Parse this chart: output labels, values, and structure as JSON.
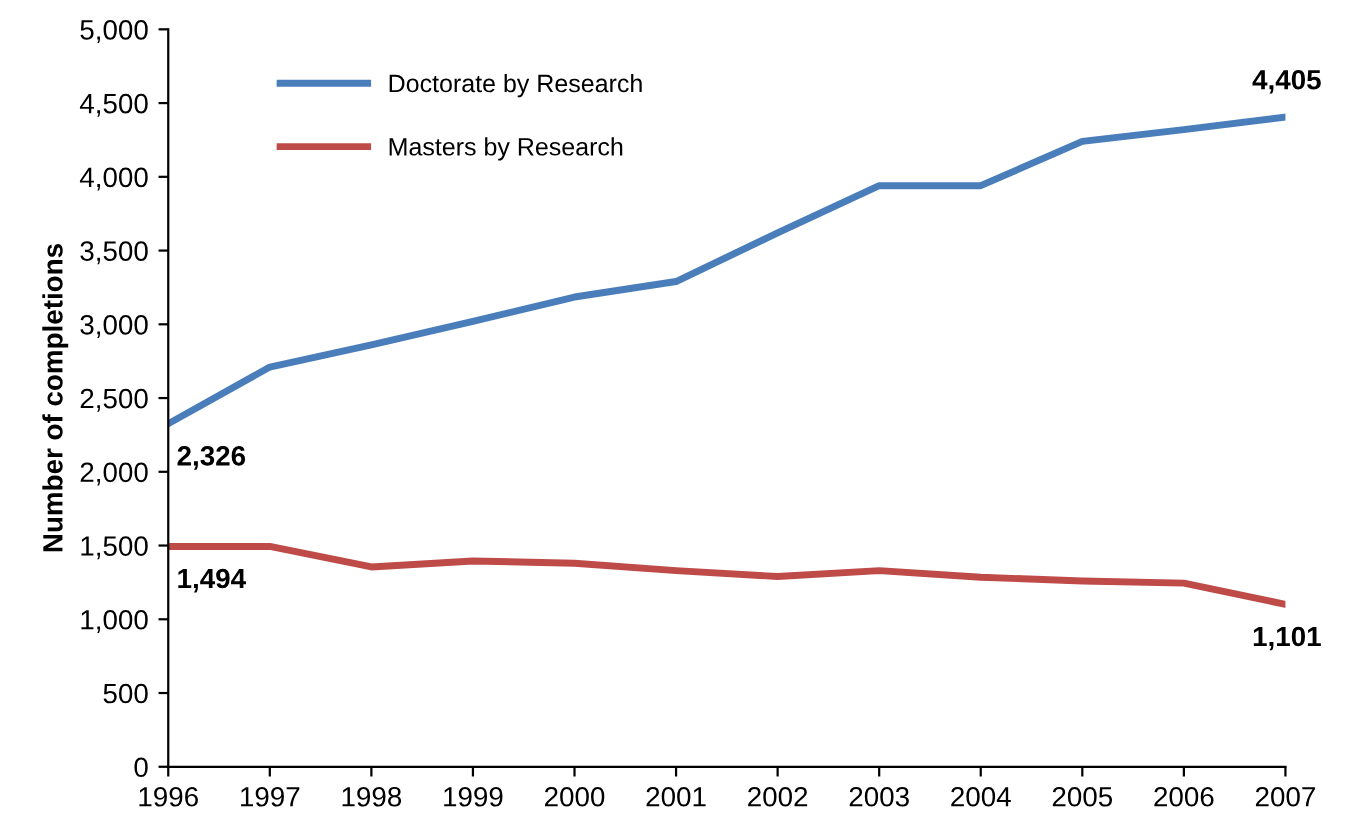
{
  "chart_data": {
    "type": "line",
    "ylabel": "Number of completions",
    "categories": [
      "1996",
      "1997",
      "1998",
      "1999",
      "2000",
      "2001",
      "2002",
      "2003",
      "2004",
      "2005",
      "2006",
      "2007"
    ],
    "series": [
      {
        "name": "Doctorate by Research",
        "color": "#4a7ebb",
        "values": [
          2326,
          2710,
          2860,
          3020,
          3185,
          3290,
          3620,
          3940,
          3940,
          4240,
          4320,
          4405
        ],
        "value_labels": [
          "2,326",
          null,
          null,
          null,
          null,
          null,
          null,
          null,
          null,
          null,
          null,
          "4,405"
        ]
      },
      {
        "name": "Masters by Research",
        "color": "#be4b48",
        "values": [
          1494,
          1494,
          1355,
          1395,
          1380,
          1330,
          1290,
          1330,
          1285,
          1260,
          1245,
          1101
        ],
        "value_labels": [
          "1,494",
          null,
          null,
          null,
          null,
          null,
          null,
          null,
          null,
          null,
          null,
          "1,101"
        ]
      }
    ],
    "ylim": [
      0,
      5000
    ],
    "yticks": [
      0,
      500,
      {
        "value": 1000,
        "label": "1,000"
      },
      {
        "value": 1500,
        "label": "1,500"
      },
      {
        "value": 2000,
        "label": "2,000"
      },
      {
        "value": 2500,
        "label": "2,500"
      },
      {
        "value": 3000,
        "label": "3,000"
      },
      {
        "value": 3500,
        "label": "3,500"
      },
      {
        "value": 4000,
        "label": "4,000"
      },
      {
        "value": 4500,
        "label": "4,500"
      },
      {
        "value": 5000,
        "label": "5,000"
      }
    ],
    "grid": false,
    "legend": "top left",
    "marker": "none",
    "line_style": "solid"
  }
}
